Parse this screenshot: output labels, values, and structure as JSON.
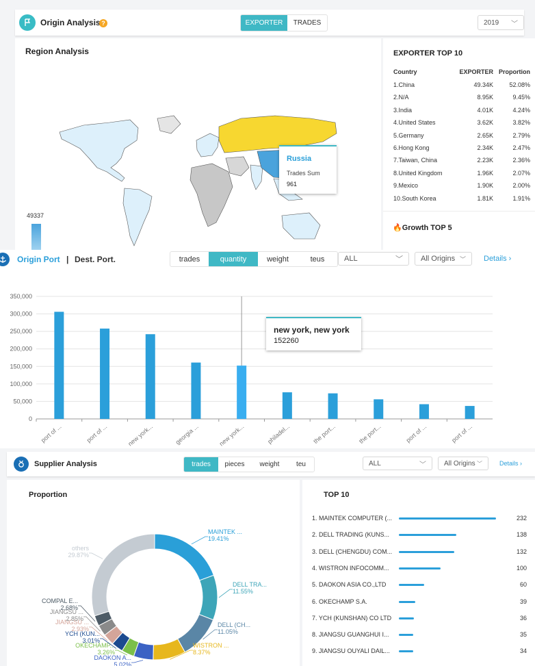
{
  "origin": {
    "title": "Origin Analysis",
    "help": "?",
    "tabs": [
      "EXPORTER",
      "TRADES"
    ],
    "year": "2019",
    "region_title": "Region Analysis",
    "legend_max": "49337",
    "tooltip": {
      "country": "Russia",
      "label": "Trades Sum",
      "value": "961"
    },
    "highlight_color": "#f7d730",
    "accent_color": "#3fb8c5",
    "top10_title": "EXPORTER TOP 10",
    "columns": [
      "Country",
      "EXPORTER",
      "Proportion"
    ],
    "rows": [
      [
        "1.China",
        "49.34K",
        "52.08%"
      ],
      [
        "2.N/A",
        "8.95K",
        "9.45%"
      ],
      [
        "3.India",
        "4.01K",
        "4.24%"
      ],
      [
        "4.United States",
        "3.62K",
        "3.82%"
      ],
      [
        "5.Germany",
        "2.65K",
        "2.79%"
      ],
      [
        "6.Hong Kong",
        "2.34K",
        "2.47%"
      ],
      [
        "7.Taiwan, China",
        "2.23K",
        "2.36%"
      ],
      [
        "8.United Kingdom",
        "1.96K",
        "2.07%"
      ],
      [
        "9.Mexico",
        "1.90K",
        "2.00%"
      ],
      [
        "10.South Korea",
        "1.81K",
        "1.91%"
      ]
    ],
    "growth_title": "Growth TOP 5"
  },
  "port": {
    "origin_label": "Origin Port",
    "separator": "|",
    "dest_label": "Dest. Port.",
    "tabs": [
      "trades",
      "quantity",
      "weight",
      "teus"
    ],
    "filter_all": "ALL",
    "filter_origins": "All Origins",
    "details": "Details ›",
    "tooltip": {
      "label": "new york, new york",
      "value": "152260"
    }
  },
  "chart_data": {
    "type": "bar",
    "categories": [
      "port of ...",
      "port of ...",
      "new york...",
      "georgia ...",
      "new york...",
      "philadel...",
      "the port...",
      "the port...",
      "port of ...",
      "port of ..."
    ],
    "values": [
      306000,
      258000,
      242000,
      161000,
      152260,
      76000,
      73000,
      56000,
      42000,
      37000
    ],
    "yticks": [
      "0",
      "50,000",
      "100,000",
      "150,000",
      "200,000",
      "250,000",
      "300,000",
      "350,000"
    ],
    "ylim": [
      0,
      350000
    ],
    "grid": true,
    "bar_color": "#2b9fda",
    "highlight_index": 4
  },
  "supplier": {
    "title": "Supplier Analysis",
    "tabs": [
      "trades",
      "pieces",
      "weight",
      "teu"
    ],
    "filter_all": "ALL",
    "filter_origins": "All Origins",
    "details": "Details ›",
    "proportion_title": "Proportion",
    "top10_title": "TOP 10",
    "donut": [
      {
        "name": "MAINTEK ...",
        "pct": "19.41%",
        "value": 19.41,
        "color": "#2a9fd8"
      },
      {
        "name": "DELL TRA...",
        "pct": "11.55%",
        "value": 11.55,
        "color": "#3da5b8"
      },
      {
        "name": "DELL (CH...",
        "pct": "11.05%",
        "value": 11.05,
        "color": "#5a86a6"
      },
      {
        "name": "WISTRON ...",
        "pct": "8.37%",
        "value": 8.37,
        "color": "#e7b71d"
      },
      {
        "name": "DAOKON A...",
        "pct": "5.02%",
        "value": 5.02,
        "color": "#3b62c4"
      },
      {
        "name": "OKECHAMP...",
        "pct": "3.26%",
        "value": 3.26,
        "color": "#7bbf4a"
      },
      {
        "name": "YCH (KUN...",
        "pct": "3.01%",
        "value": 3.01,
        "color": "#1c4a8f"
      },
      {
        "name": "JIANGSU ...",
        "pct": "2.93%",
        "value": 2.93,
        "color": "#d4a59a"
      },
      {
        "name": "JIANGSU ...",
        "pct": "2.85%",
        "value": 2.85,
        "color": "#8a8a8a"
      },
      {
        "name": "COMPAL E...",
        "pct": "2.68%",
        "value": 2.68,
        "color": "#4d5b66"
      },
      {
        "name": "others",
        "pct": "29.87%",
        "value": 29.87,
        "color": "#c4cbd2"
      }
    ],
    "top10": [
      {
        "name": "1. MAINTEK COMPUTER (...",
        "value": "232",
        "v": 232
      },
      {
        "name": "2. DELL TRADING (KUNS...",
        "value": "138",
        "v": 138
      },
      {
        "name": "3. DELL (CHENGDU) COM...",
        "value": "132",
        "v": 132
      },
      {
        "name": "4. WISTRON INFOCOMM...",
        "value": "100",
        "v": 100
      },
      {
        "name": "5. DAOKON ASIA CO.,LTD",
        "value": "60",
        "v": 60
      },
      {
        "name": "6. OKECHAMP S.A.",
        "value": "39",
        "v": 39
      },
      {
        "name": "7. YCH (KUNSHAN) CO LTD",
        "value": "36",
        "v": 36
      },
      {
        "name": "8. JIANGSU GUANGHUI I...",
        "value": "35",
        "v": 35
      },
      {
        "name": "9. JIANGSU OUYALI DAIL...",
        "value": "34",
        "v": 34
      }
    ]
  }
}
